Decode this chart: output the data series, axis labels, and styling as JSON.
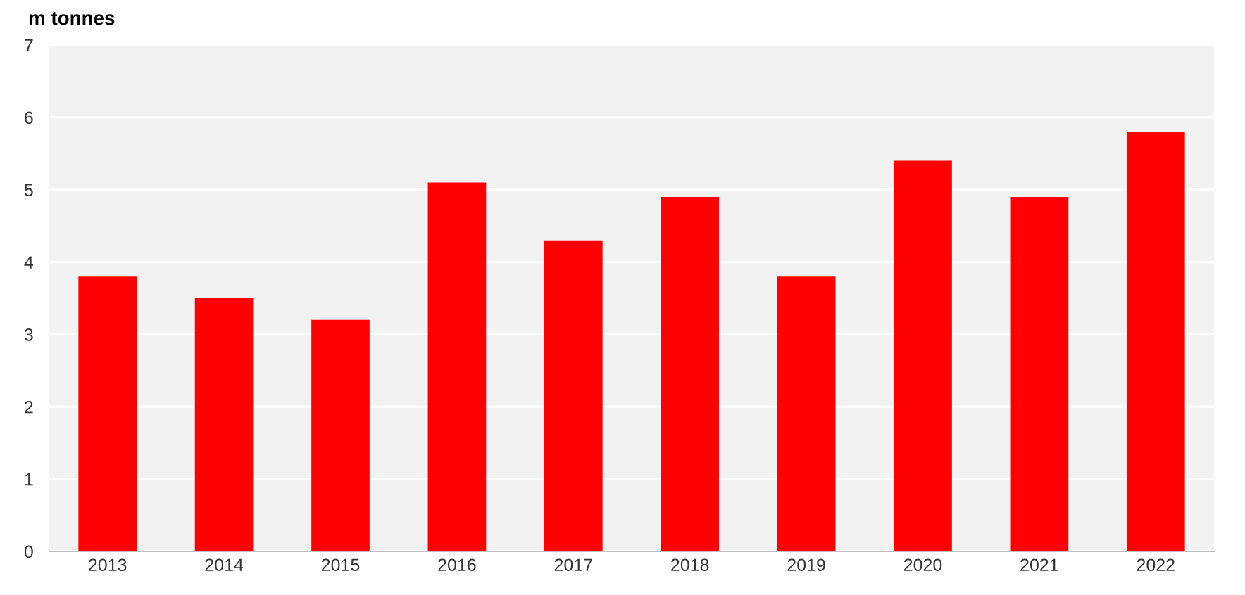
{
  "chart_data": {
    "type": "bar",
    "ylabel": "m tonnes",
    "categories": [
      "2013",
      "2014",
      "2015",
      "2016",
      "2017",
      "2018",
      "2019",
      "2020",
      "2021",
      "2022"
    ],
    "values": [
      3.8,
      3.5,
      3.2,
      5.1,
      4.3,
      4.9,
      3.8,
      5.4,
      4.9,
      5.8
    ],
    "color": "#ff0000",
    "ylim": [
      0,
      7
    ],
    "yticks": [
      0,
      1,
      2,
      3,
      4,
      5,
      6,
      7
    ],
    "grid": "y",
    "legend": false
  }
}
